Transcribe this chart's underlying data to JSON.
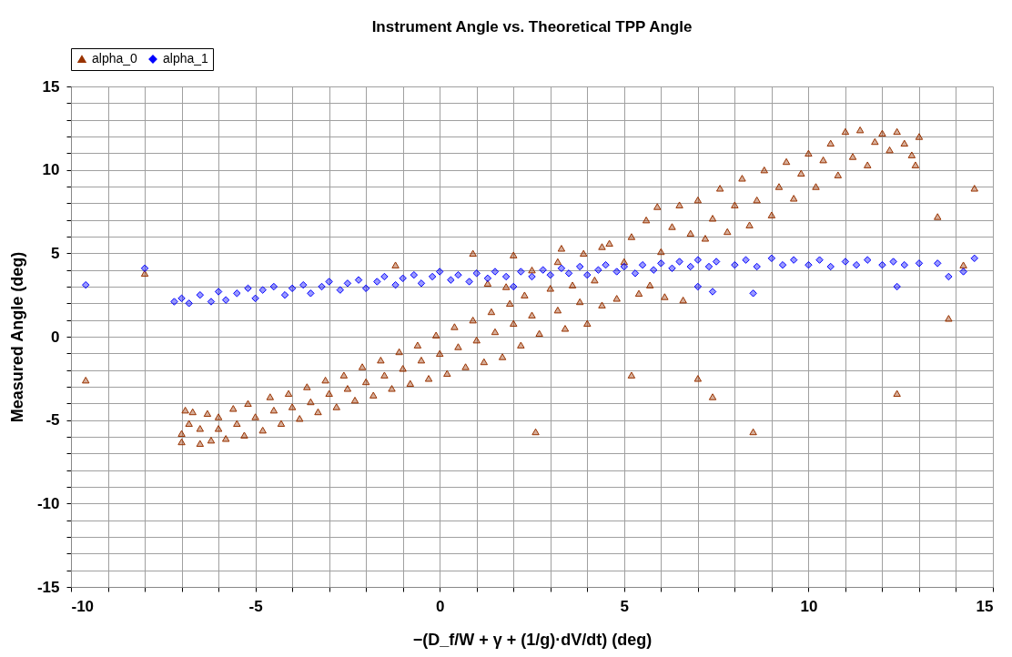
{
  "chart_data": {
    "type": "scatter",
    "title": "Instrument Angle vs. Theoretical TPP Angle",
    "xlabel": "−(D_f/W + γ + (1/g)·dV/dt)  (deg)",
    "ylabel": "Measured Angle (deg)",
    "xlim": [
      -10,
      15
    ],
    "ylim": [
      -15,
      15
    ],
    "xticks": [
      -10,
      {
        "value": -9,
        "label": null
      },
      {
        "value": -8,
        "label": null
      },
      {
        "value": -7,
        "label": null
      },
      {
        "value": -6,
        "label": null
      },
      -5,
      {
        "value": -4,
        "label": null
      },
      {
        "value": -3,
        "label": null
      },
      {
        "value": -2,
        "label": null
      },
      {
        "value": -1,
        "label": null
      },
      0,
      {
        "value": 1,
        "label": null
      },
      {
        "value": 2,
        "label": null
      },
      {
        "value": 3,
        "label": null
      },
      {
        "value": 4,
        "label": null
      },
      5,
      {
        "value": 6,
        "label": null
      },
      {
        "value": 7,
        "label": null
      },
      {
        "value": 8,
        "label": null
      },
      {
        "value": 9,
        "label": null
      },
      10,
      {
        "value": 11,
        "label": null
      },
      {
        "value": 12,
        "label": null
      },
      {
        "value": 13,
        "label": null
      },
      {
        "value": 14,
        "label": null
      },
      15
    ],
    "yticks": [
      -15,
      {
        "value": -14,
        "label": null
      },
      {
        "value": -13,
        "label": null
      },
      {
        "value": -12,
        "label": null
      },
      {
        "value": -11,
        "label": null
      },
      -10,
      {
        "value": -9,
        "label": null
      },
      {
        "value": -8,
        "label": null
      },
      {
        "value": -7,
        "label": null
      },
      {
        "value": -6,
        "label": null
      },
      -5,
      {
        "value": -4,
        "label": null
      },
      {
        "value": -3,
        "label": null
      },
      {
        "value": -2,
        "label": null
      },
      {
        "value": -1,
        "label": null
      },
      0,
      {
        "value": 1,
        "label": null
      },
      {
        "value": 2,
        "label": null
      },
      {
        "value": 3,
        "label": null
      },
      {
        "value": 4,
        "label": null
      },
      5,
      {
        "value": 6,
        "label": null
      },
      {
        "value": 7,
        "label": null
      },
      {
        "value": 8,
        "label": null
      },
      {
        "value": 9,
        "label": null
      },
      10,
      {
        "value": 11,
        "label": null
      },
      {
        "value": 12,
        "label": null
      },
      {
        "value": 13,
        "label": null
      },
      {
        "value": 14,
        "label": null
      },
      15
    ],
    "grid": true,
    "legend": "top",
    "series": [
      {
        "name": "alpha_0",
        "color": "#993300",
        "marker": "triangle",
        "x": [
          -7,
          -7,
          -6.9,
          -6.7,
          -6.8,
          -6.5,
          -6.5,
          -6.3,
          -6.2,
          -6,
          -6,
          -5.8,
          -5.6,
          -5.5,
          -5.3,
          -5.2,
          -5,
          -4.8,
          -4.6,
          -4.5,
          -4.3,
          -4.1,
          -4,
          -3.8,
          -3.6,
          -3.5,
          -3.3,
          -3.1,
          -3,
          -2.8,
          -2.6,
          -2.5,
          -2.3,
          -2.1,
          -2,
          -1.8,
          -1.6,
          -1.5,
          -1.3,
          -1.1,
          -1,
          -0.8,
          -0.6,
          -0.5,
          -0.3,
          -0.1,
          0,
          0.2,
          0.4,
          0.5,
          0.7,
          0.9,
          1,
          1.2,
          1.4,
          1.5,
          1.7,
          1.9,
          2,
          2.2,
          2.3,
          2.5,
          2.7,
          3,
          3.2,
          3.4,
          3.6,
          3.8,
          4,
          4.2,
          4.4,
          4.6,
          4.8,
          5,
          5.2,
          5.4,
          5.6,
          5.7,
          5.9,
          6,
          6.1,
          6.3,
          6.5,
          6.6,
          6.8,
          7,
          7.2,
          7.4,
          7.6,
          7.8,
          8,
          8.2,
          8.4,
          8.6,
          8.8,
          9,
          9.2,
          9.4,
          9.6,
          9.8,
          10,
          10.2,
          10.4,
          10.6,
          10.8,
          11,
          11.2,
          11.4,
          11.6,
          11.8,
          12,
          12.2,
          12.4,
          12.6,
          12.8,
          13,
          12.9,
          1.8,
          2.5,
          3.2,
          3.9,
          4.4,
          0.9,
          1.3,
          2,
          3.3,
          -9.6,
          -8,
          -1.2,
          2.6,
          5.2,
          7,
          7.4,
          8.5,
          12.4,
          13.5,
          13.8,
          14.2,
          14.5
        ],
        "values": [
          -5.8,
          -6.3,
          -4.4,
          -4.5,
          -5.2,
          -6.4,
          -5.5,
          -4.6,
          -6.2,
          -5.5,
          -4.8,
          -6.1,
          -4.3,
          -5.2,
          -5.9,
          -4.0,
          -4.8,
          -5.6,
          -3.6,
          -4.4,
          -5.2,
          -3.4,
          -4.2,
          -4.9,
          -3.0,
          -3.9,
          -4.5,
          -2.6,
          -3.4,
          -4.2,
          -2.3,
          -3.1,
          -3.8,
          -1.8,
          -2.7,
          -3.5,
          -1.4,
          -2.3,
          -3.1,
          -0.9,
          -1.9,
          -2.8,
          -0.5,
          -1.4,
          -2.5,
          0.1,
          -1.0,
          -2.2,
          0.6,
          -0.6,
          -1.8,
          1.0,
          -0.2,
          -1.5,
          1.5,
          0.3,
          -1.2,
          2.0,
          0.8,
          -0.5,
          2.5,
          1.3,
          0.2,
          2.9,
          1.6,
          0.5,
          3.1,
          2.1,
          0.8,
          3.4,
          1.9,
          5.6,
          2.3,
          4.5,
          6.0,
          2.6,
          7.0,
          3.1,
          7.8,
          5.1,
          2.4,
          6.6,
          7.9,
          2.2,
          6.2,
          8.2,
          5.9,
          7.1,
          8.9,
          6.3,
          7.9,
          9.5,
          6.7,
          8.2,
          10.0,
          7.3,
          9.0,
          10.5,
          8.3,
          9.8,
          11.0,
          9.0,
          10.6,
          11.6,
          9.7,
          12.3,
          10.8,
          12.4,
          10.3,
          11.7,
          12.2,
          11.2,
          12.3,
          11.6,
          10.9,
          12.0,
          10.3,
          3.0,
          4.0,
          4.5,
          5.0,
          5.4,
          5.0,
          3.2,
          4.9,
          5.3,
          -2.6,
          3.8,
          4.3,
          -5.7,
          -2.3,
          -2.5,
          -3.6,
          -5.7,
          -3.4,
          7.2,
          1.1,
          4.3,
          8.9
        ]
      },
      {
        "name": "alpha_1",
        "color": "#0000ff",
        "marker": "diamond",
        "x": [
          -7.2,
          -7,
          -6.8,
          -6.5,
          -6.2,
          -6,
          -5.8,
          -5.5,
          -5.2,
          -5,
          -4.8,
          -4.5,
          -4.2,
          -4,
          -3.7,
          -3.5,
          -3.2,
          -3,
          -2.7,
          -2.5,
          -2.2,
          -2,
          -1.7,
          -1.5,
          -1.2,
          -1,
          -0.7,
          -0.5,
          -0.2,
          0,
          0.3,
          0.5,
          0.8,
          1,
          1.3,
          1.5,
          1.8,
          2,
          2.2,
          2.5,
          2.8,
          3,
          3.3,
          3.5,
          3.8,
          4,
          4.3,
          4.5,
          4.8,
          5,
          5.3,
          5.5,
          5.8,
          6,
          6.3,
          6.5,
          6.8,
          7,
          7.3,
          7.5,
          8,
          8.3,
          8.6,
          9,
          9.3,
          9.6,
          10,
          10.3,
          10.6,
          11,
          11.3,
          11.6,
          12,
          12.3,
          12.6,
          13,
          -9.6,
          -8,
          7,
          7.4,
          8.5,
          12.4,
          13.5,
          13.8,
          14.2,
          14.5
        ],
        "values": [
          2.1,
          2.3,
          2.0,
          2.5,
          2.1,
          2.7,
          2.2,
          2.6,
          2.9,
          2.3,
          2.8,
          3.0,
          2.5,
          2.9,
          3.1,
          2.6,
          3.0,
          3.3,
          2.8,
          3.2,
          3.4,
          2.9,
          3.3,
          3.6,
          3.1,
          3.5,
          3.7,
          3.2,
          3.6,
          3.9,
          3.4,
          3.7,
          3.3,
          3.8,
          3.5,
          3.9,
          3.6,
          3.0,
          3.9,
          3.6,
          4.0,
          3.7,
          4.1,
          3.8,
          4.2,
          3.7,
          4.0,
          4.3,
          3.9,
          4.2,
          3.8,
          4.3,
          4.0,
          4.4,
          4.1,
          4.5,
          4.2,
          4.6,
          4.2,
          4.5,
          4.3,
          4.6,
          4.2,
          4.7,
          4.3,
          4.6,
          4.3,
          4.6,
          4.2,
          4.5,
          4.3,
          4.6,
          4.3,
          4.5,
          4.3,
          4.4,
          3.1,
          4.1,
          3.0,
          2.7,
          2.6,
          3.0,
          4.4,
          3.6,
          3.9,
          4.7
        ]
      }
    ]
  }
}
